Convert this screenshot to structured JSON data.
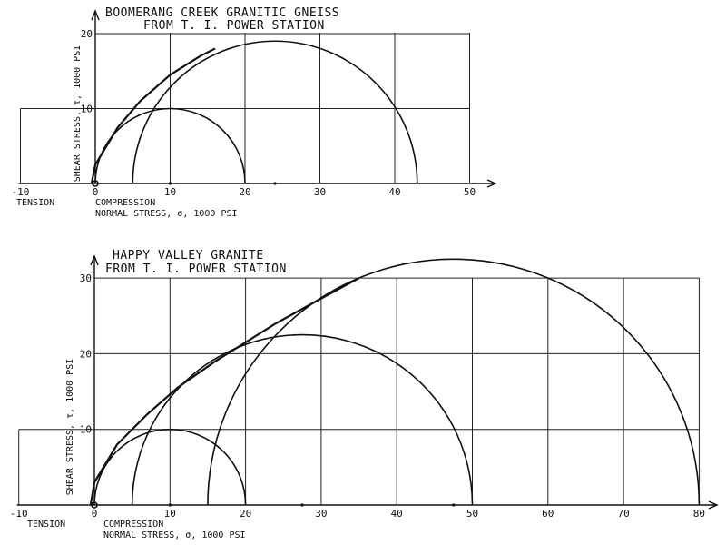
{
  "chart_data": [
    {
      "type": "mohr-circles",
      "title_lines": [
        "BOOMERANG  CREEK  GRANITIC  GNEISS",
        "FROM  T. I.  POWER  STATION"
      ],
      "xlabel_left": "TENSION",
      "xlabel_compression": "COMPRESSION",
      "xlabel": "NORMAL  STRESS, σ, 1000 PSI",
      "ylabel": "SHEAR  STRESS,  τ,  1000  PSI",
      "xlim": [
        -10,
        50
      ],
      "ylim": [
        0,
        20
      ],
      "xticks": [
        -10,
        0,
        10,
        20,
        30,
        40,
        50
      ],
      "yticks": [
        10,
        20
      ],
      "circles": [
        {
          "sigma3": -0.5,
          "sigma1": 0.5
        },
        {
          "sigma3": 0,
          "sigma1": 20
        },
        {
          "sigma3": 5,
          "sigma1": 43
        }
      ],
      "envelope": [
        [
          -0.5,
          0
        ],
        [
          0,
          2.5
        ],
        [
          3,
          7.5
        ],
        [
          6,
          11
        ],
        [
          10,
          14.5
        ],
        [
          14,
          17
        ],
        [
          16,
          18
        ]
      ]
    },
    {
      "type": "mohr-circles",
      "title_lines": [
        "HAPPY  VALLEY  GRANITE",
        "FROM  T. I.  POWER  STATION"
      ],
      "xlabel_left": "TENSION",
      "xlabel_compression": "COMPRESSION",
      "xlabel": "NORMAL  STRESS, σ, 1000 PSI",
      "ylabel": "SHEAR  STRESS,  τ,  1000  PSI",
      "xlim": [
        -10,
        80
      ],
      "ylim": [
        0,
        30
      ],
      "xticks": [
        -10,
        0,
        10,
        20,
        30,
        40,
        50,
        60,
        70,
        80
      ],
      "yticks": [
        10,
        20,
        30
      ],
      "circles": [
        {
          "sigma3": -0.5,
          "sigma1": 0.5
        },
        {
          "sigma3": 0,
          "sigma1": 20
        },
        {
          "sigma3": 5,
          "sigma1": 50
        },
        {
          "sigma3": 15,
          "sigma1": 80
        }
      ],
      "envelope": [
        [
          -0.5,
          0
        ],
        [
          0,
          3
        ],
        [
          3,
          8
        ],
        [
          7,
          12
        ],
        [
          11,
          15.5
        ],
        [
          16,
          19
        ],
        [
          24,
          24
        ],
        [
          30,
          27.3
        ],
        [
          35,
          30
        ]
      ]
    }
  ]
}
